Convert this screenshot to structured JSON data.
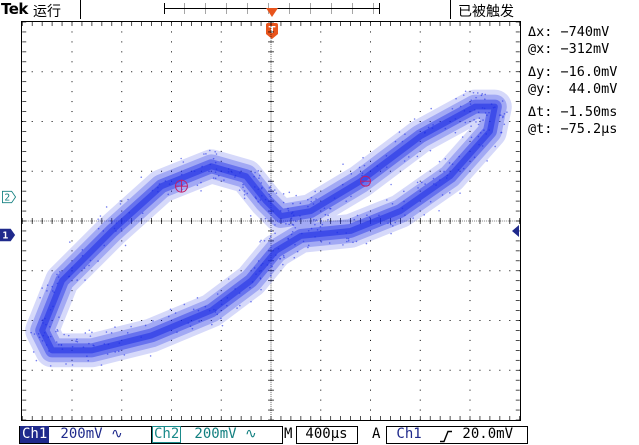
{
  "header": {
    "brand": "Tek",
    "run_state": "运行",
    "trigger_state": "已被触发",
    "trigger_marker_label": "T"
  },
  "channels": {
    "ch2_marker": "2",
    "ch1_marker": "1"
  },
  "readouts": {
    "dx": "Δx: −740mV",
    "at_x": "@x: −312mV",
    "dy": "Δy: −16.0mV",
    "at_y": "@y:  44.0mV",
    "dt": "Δt: −1.50ms",
    "at_t": "@t: −75.2µs"
  },
  "status": {
    "ch1_label": "Ch1",
    "ch1_scale": " 200mV ∿",
    "ch2_label": "Ch2",
    "ch2_scale": " 200mV ∿",
    "timebase_prefix": "M",
    "timebase": " 400µs",
    "trigger_prefix": "A",
    "trigger_source": " Ch1",
    "trigger_slope_icon": "rising-edge-icon",
    "trigger_level": " 20.0mV"
  },
  "colors": {
    "trace": "#1e2ee6",
    "ch1": "#1f2a8c",
    "ch2": "#138080",
    "trigger": "#e8541c"
  },
  "chart_data": {
    "type": "scatter",
    "mode": "XY",
    "description_free": true,
    "series": [
      {
        "points": [
          [
            -2.3,
            -1.1
          ],
          [
            -2.1,
            -0.6
          ],
          [
            -1.6,
            -0.1
          ],
          [
            -1.1,
            0.35
          ],
          [
            -0.6,
            0.55
          ],
          [
            -0.25,
            0.45
          ],
          [
            -0.05,
            0.2
          ],
          [
            0.1,
            0.05
          ],
          [
            0.4,
            0.1
          ],
          [
            0.9,
            0.4
          ],
          [
            1.5,
            0.85
          ],
          [
            2.05,
            1.15
          ],
          [
            2.25,
            1.15
          ],
          [
            2.2,
            0.9
          ],
          [
            1.8,
            0.45
          ],
          [
            1.3,
            0.1
          ],
          [
            0.8,
            -0.1
          ],
          [
            0.3,
            -0.15
          ],
          [
            0.05,
            -0.3
          ],
          [
            -0.2,
            -0.6
          ],
          [
            -0.6,
            -0.9
          ],
          [
            -1.2,
            -1.15
          ],
          [
            -1.8,
            -1.3
          ],
          [
            -2.2,
            -1.3
          ]
        ]
      }
    ],
    "xlim": [
      -2.5,
      2.5
    ],
    "ylim": [
      -2.0,
      2.0
    ],
    "grid": true
  }
}
